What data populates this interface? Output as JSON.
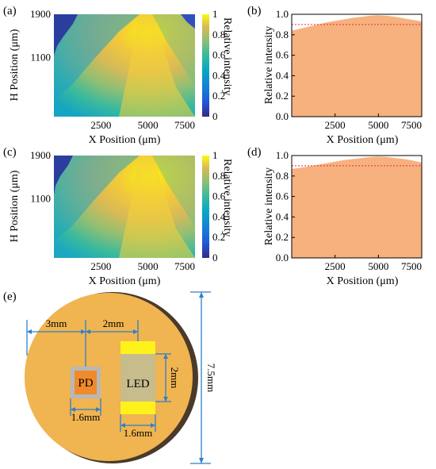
{
  "panels": [
    {
      "label": "(a)",
      "kind": "heatmap"
    },
    {
      "label": "(b)",
      "kind": "area"
    },
    {
      "label": "(c)",
      "kind": "heatmap"
    },
    {
      "label": "(d)",
      "kind": "area"
    },
    {
      "label": "(e)",
      "kind": "diagram"
    }
  ],
  "colors": {
    "area_fill": "#F7B17E",
    "threshold_line": "#E0303A",
    "board_fill": "#F0B450",
    "board_edge": "#4A3A2A",
    "dimension_line": "#2E7FC8",
    "pd_chip": "#F08A2A",
    "pd_frame": "#B8B8B8",
    "led_body": "#C6BC8C",
    "led_pad": "#FFF21A"
  },
  "chart_data": [
    {
      "type": "heatmap",
      "panel": "(a)",
      "xlabel": "X Position (μm)",
      "ylabel": "H Position (μm)",
      "x_ticks": [
        "2500",
        "5000",
        "7500"
      ],
      "y_ticks": [
        "1900",
        "1100"
      ],
      "xlim": [
        0,
        7500
      ],
      "ylim": [
        0,
        1900
      ],
      "colorbar": {
        "label": "Relative intensity",
        "ticks": [
          "1",
          "0.8",
          "0.6",
          "0.4",
          "0.2",
          "0"
        ],
        "range": [
          0,
          1
        ],
        "colormap": "parula"
      },
      "peak_x": 5000,
      "grid": false
    },
    {
      "type": "area",
      "panel": "(b)",
      "xlabel": "X Position (μm)",
      "ylabel": "Relative intensity",
      "x_ticks": [
        "2500",
        "5000",
        "7500"
      ],
      "y_ticks": [
        "1.0",
        "0.8",
        "0.6",
        "0.4",
        "0.2",
        "0.0"
      ],
      "xlim": [
        0,
        7500
      ],
      "ylim": [
        0,
        1.0
      ],
      "x": [
        0,
        500,
        1000,
        1500,
        2000,
        2500,
        3000,
        3500,
        4000,
        4500,
        5000,
        5500,
        6000,
        6500,
        7000,
        7500
      ],
      "y": [
        0.84,
        0.86,
        0.88,
        0.9,
        0.92,
        0.935,
        0.95,
        0.965,
        0.975,
        0.985,
        0.99,
        0.985,
        0.975,
        0.96,
        0.945,
        0.93
      ],
      "threshold": 0.9,
      "grid": false
    },
    {
      "type": "heatmap",
      "panel": "(c)",
      "xlabel": "X Position (μm)",
      "ylabel": "H Position (μm)",
      "x_ticks": [
        "2500",
        "5000",
        "7500"
      ],
      "y_ticks": [
        "1900",
        "1100"
      ],
      "xlim": [
        0,
        7500
      ],
      "ylim": [
        0,
        1900
      ],
      "colorbar": {
        "label": "Relative intensity",
        "ticks": [
          "1",
          "0.8",
          "0.6",
          "0.4",
          "0.2",
          "0"
        ],
        "range": [
          0,
          1
        ],
        "colormap": "parula"
      },
      "peak_x": 5000,
      "grid": false
    },
    {
      "type": "area",
      "panel": "(d)",
      "xlabel": "X Position (μm)",
      "ylabel": "Relative intensity",
      "x_ticks": [
        "2500",
        "5000",
        "7500"
      ],
      "y_ticks": [
        "1.0",
        "0.8",
        "0.6",
        "0.4",
        "0.2",
        "0.0"
      ],
      "xlim": [
        0,
        7500
      ],
      "ylim": [
        0,
        1.0
      ],
      "x": [
        0,
        500,
        1000,
        1500,
        2000,
        2500,
        3000,
        3500,
        4000,
        4500,
        5000,
        5500,
        6000,
        6500,
        7000,
        7500
      ],
      "y": [
        0.87,
        0.88,
        0.895,
        0.91,
        0.925,
        0.94,
        0.955,
        0.965,
        0.975,
        0.985,
        0.99,
        0.985,
        0.975,
        0.965,
        0.95,
        0.93
      ],
      "threshold": 0.9,
      "grid": false
    }
  ],
  "diagram": {
    "dims": {
      "pd_offset": "3mm",
      "led_offset": "2mm",
      "led_height": "2mm",
      "pd_width": "1.6mm",
      "led_width": "1.6mm",
      "board": "7.5mm"
    },
    "chips": {
      "pd": "PD",
      "led": "LED"
    }
  }
}
